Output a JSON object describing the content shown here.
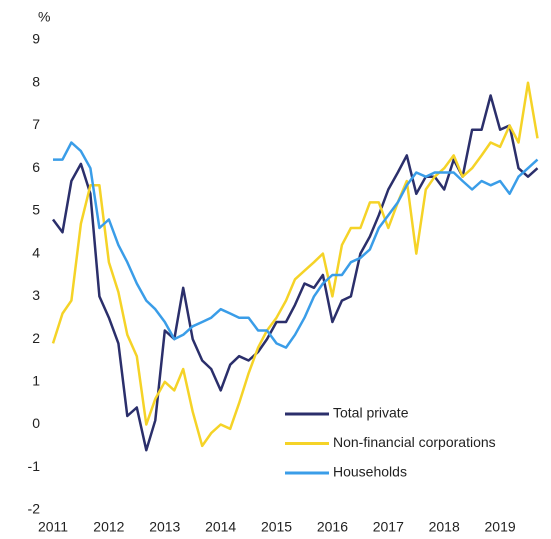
{
  "chart_data": {
    "type": "line",
    "y_label": "%",
    "x": [
      2011,
      2011.17,
      2011.33,
      2011.5,
      2011.67,
      2011.83,
      2012,
      2012.17,
      2012.33,
      2012.5,
      2012.67,
      2012.83,
      2013,
      2013.17,
      2013.33,
      2013.5,
      2013.67,
      2013.83,
      2014,
      2014.17,
      2014.33,
      2014.5,
      2014.67,
      2014.83,
      2015,
      2015.17,
      2015.33,
      2015.5,
      2015.67,
      2015.83,
      2016,
      2016.17,
      2016.33,
      2016.5,
      2016.67,
      2016.83,
      2017,
      2017.17,
      2017.33,
      2017.5,
      2017.67,
      2017.83,
      2018,
      2018.17,
      2018.33,
      2018.5,
      2018.67,
      2018.83,
      2019,
      2019.17,
      2019.33,
      2019.5,
      2019.67
    ],
    "series": [
      {
        "name": "Total private",
        "color": "#2b2f6b",
        "values": [
          4.8,
          4.5,
          5.7,
          6.1,
          5.4,
          3.0,
          2.5,
          1.9,
          0.2,
          0.4,
          -0.6,
          0.1,
          2.2,
          2.0,
          3.2,
          2.0,
          1.5,
          1.3,
          0.8,
          1.4,
          1.6,
          1.5,
          1.7,
          2.0,
          2.4,
          2.4,
          2.8,
          3.3,
          3.2,
          3.5,
          2.4,
          2.9,
          3.0,
          4.0,
          4.4,
          4.9,
          5.5,
          5.9,
          6.3,
          5.4,
          5.8,
          5.8,
          5.5,
          6.2,
          5.8,
          6.9,
          6.9,
          7.7,
          6.9,
          7.0,
          6.0,
          5.8,
          6.0
        ]
      },
      {
        "name": "Non-financial corporations",
        "color": "#f5d327",
        "values": [
          1.9,
          2.6,
          2.9,
          4.7,
          5.6,
          5.6,
          3.8,
          3.1,
          2.1,
          1.6,
          0.0,
          0.6,
          1.0,
          0.8,
          1.3,
          0.3,
          -0.5,
          -0.2,
          0.0,
          -0.1,
          0.5,
          1.2,
          1.8,
          2.2,
          2.5,
          2.9,
          3.4,
          3.6,
          3.8,
          4.0,
          3.0,
          4.2,
          4.6,
          4.6,
          5.2,
          5.2,
          4.6,
          5.2,
          5.7,
          4.0,
          5.5,
          5.8,
          6.0,
          6.3,
          5.8,
          6.0,
          6.3,
          6.6,
          6.5,
          7.0,
          6.6,
          8.0,
          6.7
        ]
      },
      {
        "name": "Households",
        "color": "#3a9de8",
        "values": [
          6.2,
          6.2,
          6.6,
          6.4,
          6.0,
          4.6,
          4.8,
          4.2,
          3.8,
          3.3,
          2.9,
          2.7,
          2.4,
          2.0,
          2.1,
          2.3,
          2.4,
          2.5,
          2.7,
          2.6,
          2.5,
          2.5,
          2.2,
          2.2,
          1.9,
          1.8,
          2.1,
          2.5,
          3.0,
          3.3,
          3.5,
          3.5,
          3.8,
          3.9,
          4.1,
          4.6,
          4.9,
          5.2,
          5.6,
          5.9,
          5.8,
          5.9,
          5.9,
          5.9,
          5.7,
          5.5,
          5.7,
          5.6,
          5.7,
          5.4,
          5.8,
          6.0,
          6.2
        ]
      }
    ],
    "xlim": [
      2011,
      2019.75
    ],
    "xticks": [
      2011,
      2012,
      2013,
      2014,
      2015,
      2016,
      2017,
      2018,
      2019
    ],
    "ylim": [
      -2,
      9
    ],
    "yticks": [
      -2,
      -1,
      0,
      1,
      2,
      3,
      4,
      5,
      6,
      7,
      8,
      9
    ],
    "grid": false,
    "legend": "lower right"
  }
}
